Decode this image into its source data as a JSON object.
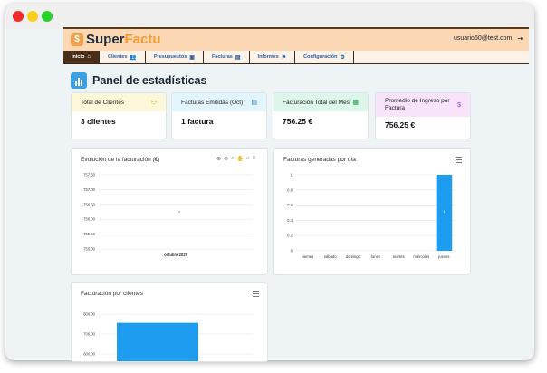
{
  "app": {
    "logo_super": "Super",
    "logo_facto": "Factu",
    "user_email": "usuario60@test.com"
  },
  "nav": [
    {
      "label": "Inicio",
      "icon": "home-icon",
      "active": true
    },
    {
      "label": "Clientes",
      "icon": "users-icon"
    },
    {
      "label": "Presupuestos",
      "icon": "clipboard-icon"
    },
    {
      "label": "Facturas",
      "icon": "file-icon"
    },
    {
      "label": "Informes",
      "icon": "flag-icon"
    },
    {
      "label": "Configuración",
      "icon": "gears-icon"
    }
  ],
  "page": {
    "title": "Panel de estadísticas"
  },
  "stats": [
    {
      "label": "Total de Clientes",
      "value": "3 clientes",
      "icon": "users-icon",
      "color": "#fdf7d9"
    },
    {
      "label": "Facturas Emitidas (Oct)",
      "value": "1 factura",
      "icon": "file-icon",
      "color": "#e2f4fc"
    },
    {
      "label": "Facturación Total del Mes",
      "value": "756.25 €",
      "icon": "cash-icon",
      "color": "#dcf6ea"
    },
    {
      "label": "Promedio de Ingreso por Factura",
      "value": "756.25 €",
      "icon": "dollar-icon",
      "color": "#f8e3fb"
    }
  ],
  "charts": {
    "evolucion_title": "Evolución de la facturación (€)",
    "facturas_dia_title": "Facturas generadas por día",
    "clientes_title": "Facturación por clientes"
  },
  "chart_data": [
    {
      "type": "line",
      "title": "Evolución de la facturación (€)",
      "x": [
        "octubre 2025"
      ],
      "series": [
        {
          "values": [
            756.25
          ]
        }
      ],
      "yticks": [
        "757.50",
        "757.00",
        "756.50",
        "756.00",
        "755.50",
        "755.00"
      ],
      "ylim": [
        755.0,
        757.5
      ],
      "color": "#3aa0e0"
    },
    {
      "type": "bar",
      "title": "Facturas generadas por día",
      "categories": [
        "viernes",
        "sábado",
        "domingo",
        "lunes",
        "martes",
        "miércoles",
        "jueves"
      ],
      "values": [
        0,
        0,
        0,
        0,
        0,
        0,
        1
      ],
      "yticks": [
        "1",
        "0.8",
        "0.6",
        "0.4",
        "0.2",
        "0"
      ],
      "ylim": [
        0,
        1
      ],
      "data_labels": [
        "",
        "",
        "",
        "",
        "",
        "",
        "1"
      ],
      "color": "#1e9cf0"
    },
    {
      "type": "bar",
      "title": "Facturación por clientes",
      "values": [
        756.25
      ],
      "yticks": [
        "800.00",
        "700.00",
        "600.00"
      ],
      "ylim": [
        600,
        800
      ],
      "color": "#1e9cf0"
    }
  ]
}
